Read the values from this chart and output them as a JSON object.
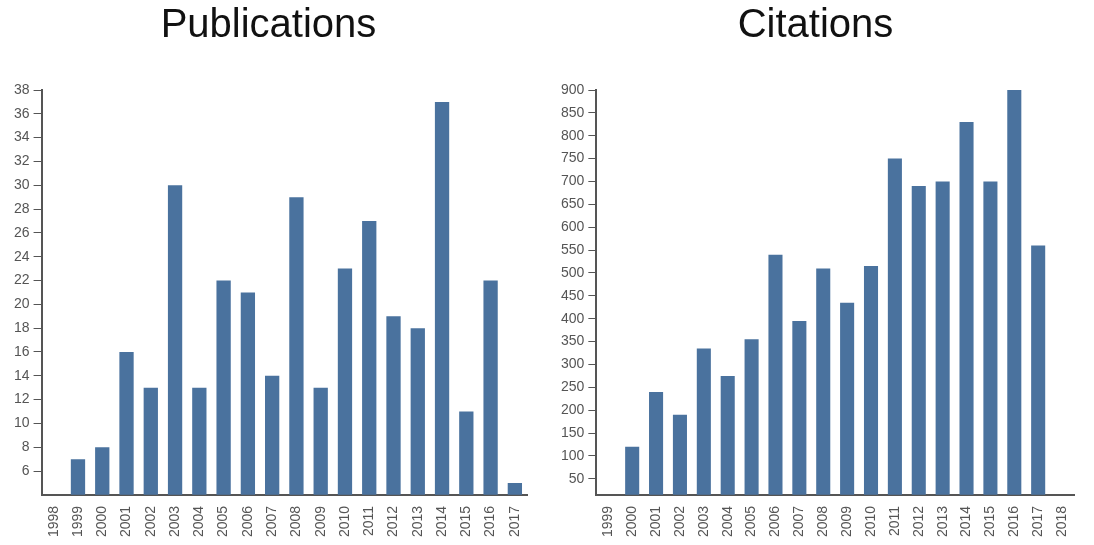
{
  "chart_data": [
    {
      "type": "bar",
      "title": "Publications",
      "categories": [
        "1998",
        "1999",
        "2000",
        "2001",
        "2002",
        "2003",
        "2004",
        "2005",
        "2006",
        "2007",
        "2008",
        "2009",
        "2010",
        "2011",
        "2012",
        "2013",
        "2014",
        "2015",
        "2016",
        "2017"
      ],
      "values": [
        null,
        7,
        8,
        16,
        13,
        30,
        13,
        22,
        21,
        14,
        29,
        13,
        23,
        27,
        19,
        18,
        37,
        11,
        22,
        5
      ],
      "color": "#4a729e",
      "ylim": [
        4,
        38
      ],
      "yticks": [
        6,
        8,
        10,
        12,
        14,
        16,
        18,
        20,
        22,
        24,
        26,
        28,
        30,
        32,
        34,
        36,
        38
      ],
      "grid": false,
      "legend": false
    },
    {
      "type": "bar",
      "title": "Citations",
      "categories": [
        "1999",
        "2000",
        "2001",
        "2002",
        "2003",
        "2004",
        "2005",
        "2006",
        "2007",
        "2008",
        "2009",
        "2010",
        "2011",
        "2012",
        "2013",
        "2014",
        "2015",
        "2016",
        "2017",
        "2018"
      ],
      "values": [
        null,
        120,
        240,
        190,
        335,
        275,
        355,
        540,
        395,
        510,
        435,
        515,
        750,
        690,
        700,
        830,
        700,
        900,
        560,
        null
      ],
      "color": "#4a729e",
      "ylim": [
        15,
        900
      ],
      "yticks": [
        50,
        100,
        150,
        200,
        250,
        300,
        350,
        400,
        450,
        500,
        550,
        600,
        650,
        700,
        750,
        800,
        850,
        900
      ],
      "grid": false,
      "legend": false
    }
  ]
}
